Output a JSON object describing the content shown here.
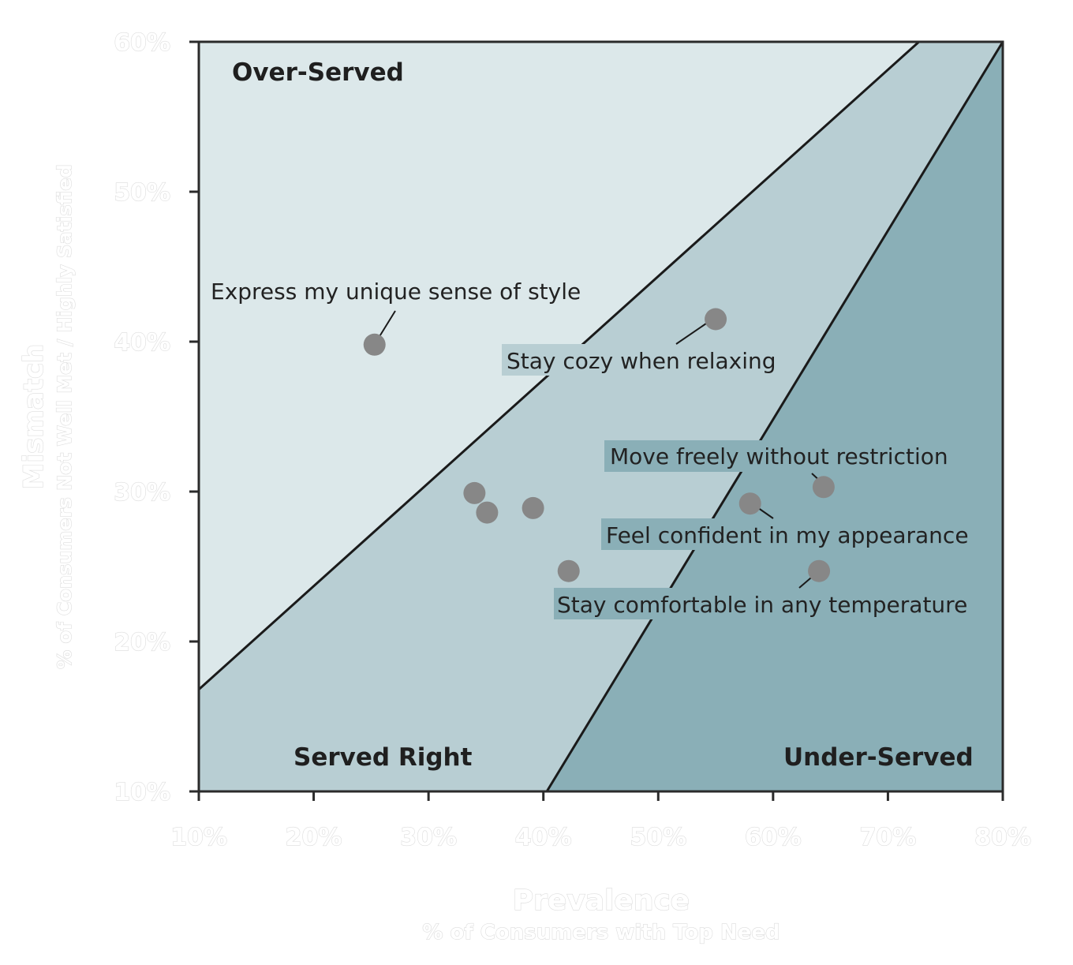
{
  "colors": {
    "over_served": "#dce8ea",
    "served_right": "#b8ced3",
    "under_served": "#8aafb7",
    "point": "#878787",
    "label_bg_mid": "#b8ced3",
    "label_bg_dark": "#8aafb7"
  },
  "chart_data": {
    "type": "scatter",
    "title": "",
    "xlabel": "Prevalence",
    "xlabel_sub": "% of Consumers with Top Need",
    "ylabel": "Mismatch",
    "ylabel_sub": "% of Consumers Not Well Met / Highly Satisfied",
    "xlim": [
      10,
      80
    ],
    "ylim": [
      10,
      60
    ],
    "x_ticks": [
      10,
      20,
      30,
      40,
      50,
      60,
      70,
      80
    ],
    "y_ticks": [
      10,
      20,
      30,
      40,
      50,
      60
    ],
    "x_tick_labels": [
      "10%",
      "20%",
      "30%",
      "40%",
      "50%",
      "60%",
      "70%",
      "80%"
    ],
    "y_tick_labels": [
      "10%",
      "20%",
      "30%",
      "40%",
      "50%",
      "60%"
    ],
    "grid": false,
    "regions": [
      {
        "name": "Over-Served"
      },
      {
        "name": "Served Right"
      },
      {
        "name": "Under-Served"
      }
    ],
    "boundaries": [
      {
        "from": [
          10,
          16.8
        ],
        "to": [
          72.7,
          60
        ]
      },
      {
        "from": [
          40.3,
          10
        ],
        "to": [
          80,
          60
        ]
      }
    ],
    "points": [
      {
        "x": 25.3,
        "y": 39.8,
        "label": "Express my unique sense of style"
      },
      {
        "x": 55.0,
        "y": 41.5,
        "label": "Stay cozy when relaxing"
      },
      {
        "x": 64.4,
        "y": 30.3,
        "label": "Move freely without restriction"
      },
      {
        "x": 58.0,
        "y": 29.2,
        "label": "Feel confident in my appearance"
      },
      {
        "x": 64.0,
        "y": 24.7,
        "label": "Stay comfortable in any temperature"
      },
      {
        "x": 34.0,
        "y": 29.9,
        "label": ""
      },
      {
        "x": 35.1,
        "y": 28.6,
        "label": ""
      },
      {
        "x": 39.1,
        "y": 28.9,
        "label": ""
      },
      {
        "x": 42.2,
        "y": 24.7,
        "label": ""
      }
    ]
  }
}
